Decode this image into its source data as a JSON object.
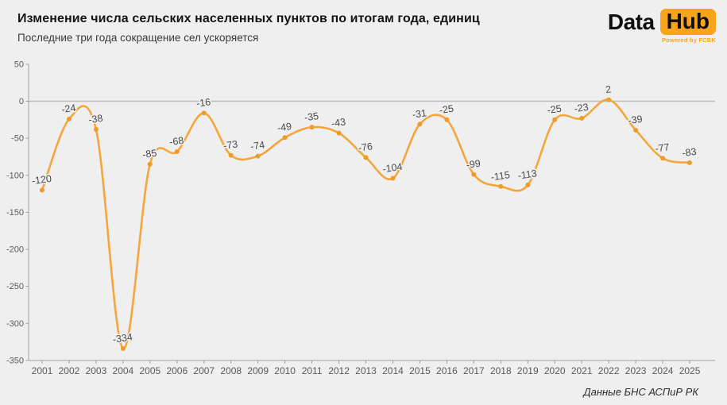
{
  "header": {
    "title": "Изменение числа сельских населенных пунктов по итогам года, единиц",
    "subtitle": "Последние три года сокращение сел ускоряется"
  },
  "logo": {
    "part1": "Data",
    "part2": "Hub",
    "tagline": "Powered by FCBK"
  },
  "footer": {
    "source": "Данные БНС АСПиР РК"
  },
  "colors": {
    "background": "#efefef",
    "line": "#f4a63c",
    "marker": "#ec9b2c",
    "data_label": "#4a4a4d",
    "axis": "#a0a0a0",
    "tick_label": "#5a5a5a",
    "zero_line": "#bdbdbd",
    "logo_orange": "#f9a41b",
    "title": "#141414",
    "subtitle": "#3a3a3a"
  },
  "chart_data": {
    "type": "line",
    "title": "Изменение числа сельских населенных пунктов по итогам года, единиц",
    "subtitle": "Последние три года сокращение сел ускоряется",
    "xlabel": "",
    "ylabel": "",
    "categories": [
      "2001",
      "2002",
      "2003",
      "2004",
      "2005",
      "2006",
      "2007",
      "2008",
      "2009",
      "2010",
      "2011",
      "2012",
      "2013",
      "2014",
      "2015",
      "2016",
      "2017",
      "2018",
      "2019",
      "2020",
      "2021",
      "2022",
      "2023",
      "2024",
      "2025"
    ],
    "values": [
      -120,
      -24,
      -38,
      -334,
      -85,
      -68,
      -16,
      -73,
      -74,
      -49,
      -35,
      -43,
      -76,
      -104,
      -31,
      -25,
      -99,
      -115,
      -113,
      -25,
      -23,
      2,
      -39,
      -77,
      -83
    ],
    "ylim": [
      -350,
      50
    ],
    "yticks": [
      50,
      0,
      -50,
      -100,
      -150,
      -200,
      -250,
      -300,
      -350
    ],
    "grid": false,
    "zero_line": true,
    "legend": "none",
    "data_labels": true,
    "source": "Данные БНС АСПиР РК"
  }
}
